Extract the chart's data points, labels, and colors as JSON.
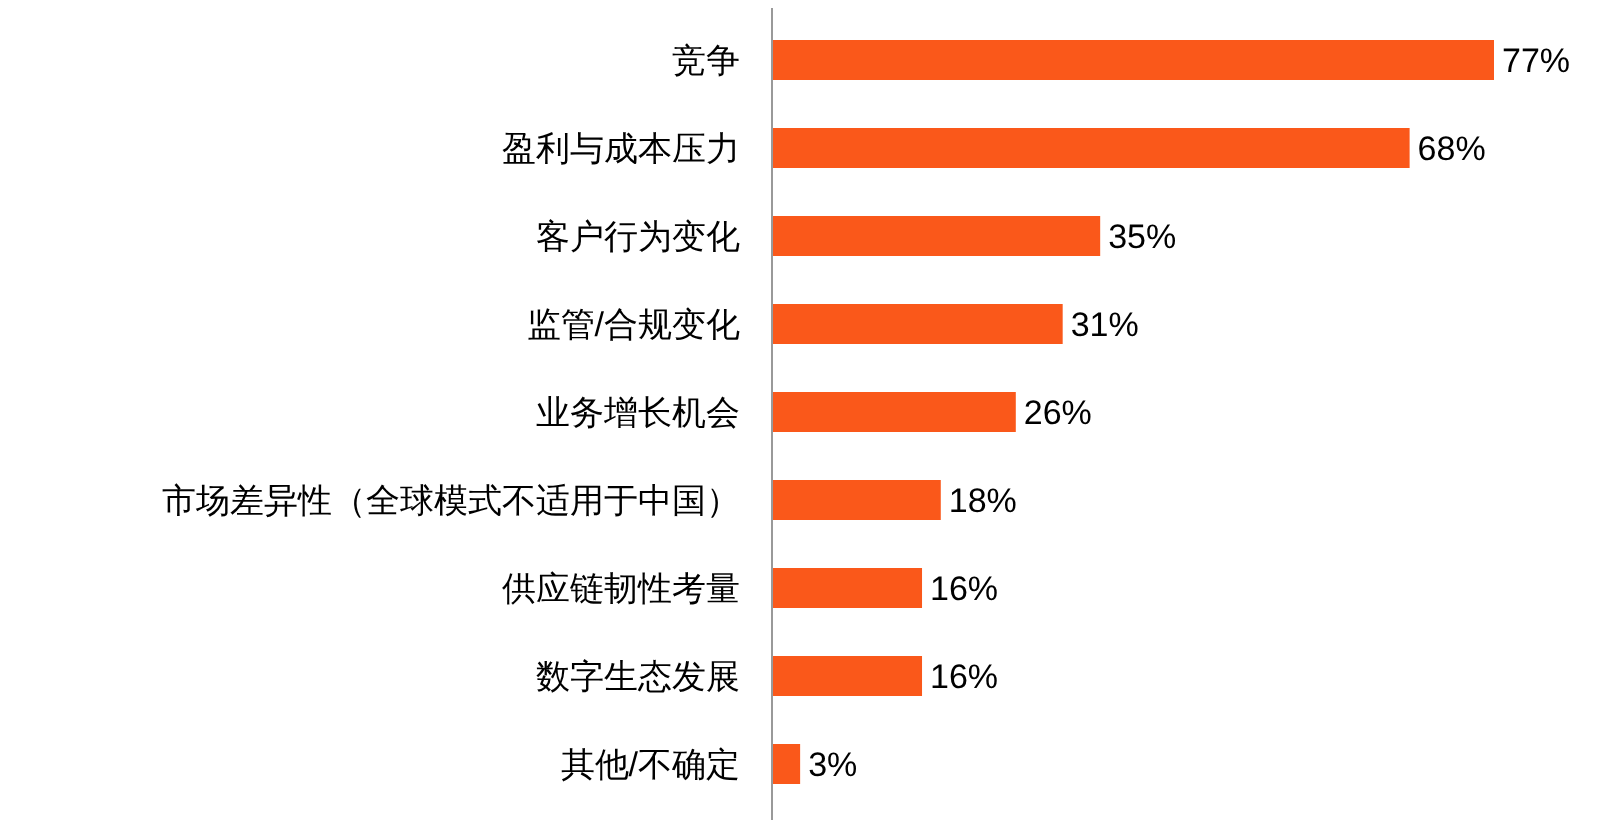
{
  "chart_data": {
    "type": "bar",
    "orientation": "horizontal",
    "categories": [
      "竞争",
      "盈利与成本压力",
      "客户行为变化",
      "监管/合规变化",
      "业务增长机会",
      "市场差异性（全球模式不适用于中国）",
      "供应链韧性考量",
      "数字生态发展",
      "其他/不确定"
    ],
    "values": [
      77,
      68,
      35,
      31,
      26,
      18,
      16,
      16,
      3
    ],
    "value_labels": [
      "77%",
      "68%",
      "35%",
      "31%",
      "26%",
      "18%",
      "16%",
      "16%",
      "3%"
    ],
    "color": "#fa581a"
  }
}
